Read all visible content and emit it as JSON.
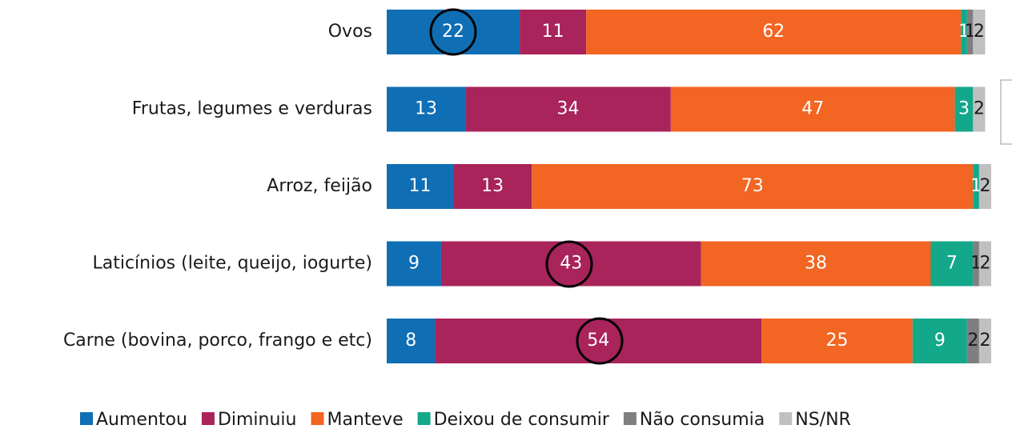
{
  "chart_data": {
    "type": "stacked-bar-horizontal",
    "categories": [
      "Ovos",
      "Frutas, legumes e verduras",
      "Arroz, feijão",
      "Laticínios (leite, queijo, iogurte)",
      "Carne (bovina, porco, frango e etc)"
    ],
    "series": [
      {
        "name": "Aumentou",
        "color": "#0f6eb4",
        "values": [
          22,
          13,
          11,
          9,
          8
        ]
      },
      {
        "name": "Diminuiu",
        "color": "#a8245a",
        "values": [
          11,
          34,
          13,
          43,
          54
        ]
      },
      {
        "name": "Manteve",
        "color": "#f26522",
        "values": [
          62,
          47,
          73,
          38,
          25
        ]
      },
      {
        "name": "Deixou de consumir",
        "color": "#13a88a",
        "values": [
          1,
          3,
          1,
          7,
          9
        ]
      },
      {
        "name": "Não consumia",
        "color": "#7f7f7f",
        "values": [
          1,
          null,
          null,
          1,
          2
        ]
      },
      {
        "name": "NS/NR",
        "color": "#c0c0c0",
        "values": [
          2,
          2,
          2,
          2,
          2
        ]
      }
    ]
  }
}
